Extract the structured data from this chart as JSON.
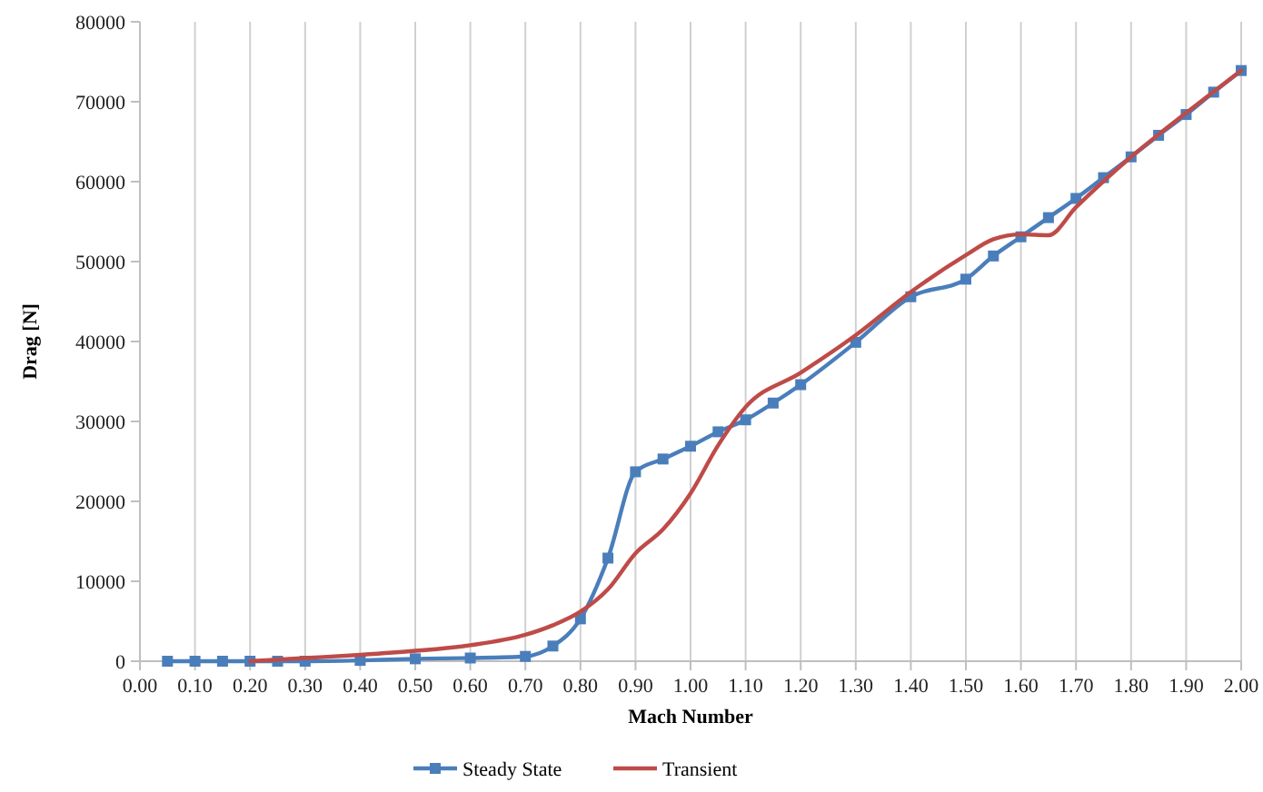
{
  "chart_data": {
    "type": "line",
    "xlabel": "Mach Number",
    "ylabel": "Drag [N]",
    "xlim": [
      0,
      2
    ],
    "xticks": [
      {
        "value": 0,
        "label": "0.00"
      },
      {
        "value": 0.1,
        "label": "0.10"
      },
      {
        "value": 0.2,
        "label": "0.20"
      },
      {
        "value": 0.3,
        "label": "0.30"
      },
      {
        "value": 0.4,
        "label": "0.40"
      },
      {
        "value": 0.5,
        "label": "0.50"
      },
      {
        "value": 0.6,
        "label": "0.60"
      },
      {
        "value": 0.7,
        "label": "0.70"
      },
      {
        "value": 0.8,
        "label": "0.80"
      },
      {
        "value": 0.9,
        "label": "0.90"
      },
      {
        "value": 1,
        "label": "1.00"
      },
      {
        "value": 1.1,
        "label": "1.10"
      },
      {
        "value": 1.2,
        "label": "1.20"
      },
      {
        "value": 1.3,
        "label": "1.30"
      },
      {
        "value": 1.4,
        "label": "1.40"
      },
      {
        "value": 1.5,
        "label": "1.50"
      },
      {
        "value": 1.6,
        "label": "1.60"
      },
      {
        "value": 1.7,
        "label": "1.70"
      },
      {
        "value": 1.8,
        "label": "1.80"
      },
      {
        "value": 1.9,
        "label": "1.90"
      },
      {
        "value": 2,
        "label": "2.00"
      }
    ],
    "ylim": [
      0,
      80000
    ],
    "yticks": [
      0,
      10000,
      20000,
      30000,
      40000,
      50000,
      60000,
      70000,
      80000
    ],
    "grid": "x",
    "legend": "bottom",
    "line_style": "solid",
    "series": [
      {
        "name": "Steady State",
        "color": "#4a7ebb",
        "marker": "square",
        "x": [
          0.05,
          0.1,
          0.15,
          0.2,
          0.25,
          0.3,
          0.4,
          0.5,
          0.6,
          0.7,
          0.75,
          0.8,
          0.85,
          0.9,
          0.95,
          1.0,
          1.05,
          1.1,
          1.15,
          1.2,
          1.3,
          1.4,
          1.5,
          1.55,
          1.6,
          1.65,
          1.7,
          1.75,
          1.8,
          1.85,
          1.9,
          1.95,
          2.0
        ],
        "values": [
          0,
          0,
          0,
          0,
          0,
          0,
          100,
          300,
          400,
          600,
          1900,
          5300,
          12900,
          23700,
          25300,
          26900,
          28700,
          30200,
          32300,
          34600,
          39900,
          45600,
          47800,
          50700,
          53100,
          55500,
          57900,
          60500,
          63100,
          65800,
          68400,
          71200,
          73900
        ]
      },
      {
        "name": "Transient",
        "color": "#be4b48",
        "marker": "none",
        "x": [
          0.2,
          0.3,
          0.4,
          0.5,
          0.6,
          0.7,
          0.75,
          0.8,
          0.85,
          0.9,
          0.95,
          1.0,
          1.05,
          1.1,
          1.2,
          1.3,
          1.4,
          1.5,
          1.55,
          1.6,
          1.65,
          1.7,
          1.8,
          1.9,
          2.0
        ],
        "values": [
          0,
          400,
          800,
          1300,
          2000,
          3300,
          4500,
          6200,
          9000,
          13500,
          16500,
          21000,
          27000,
          31800,
          36100,
          40800,
          46200,
          50800,
          52800,
          53400,
          53300,
          56800,
          63100,
          68600,
          73900
        ]
      }
    ]
  }
}
